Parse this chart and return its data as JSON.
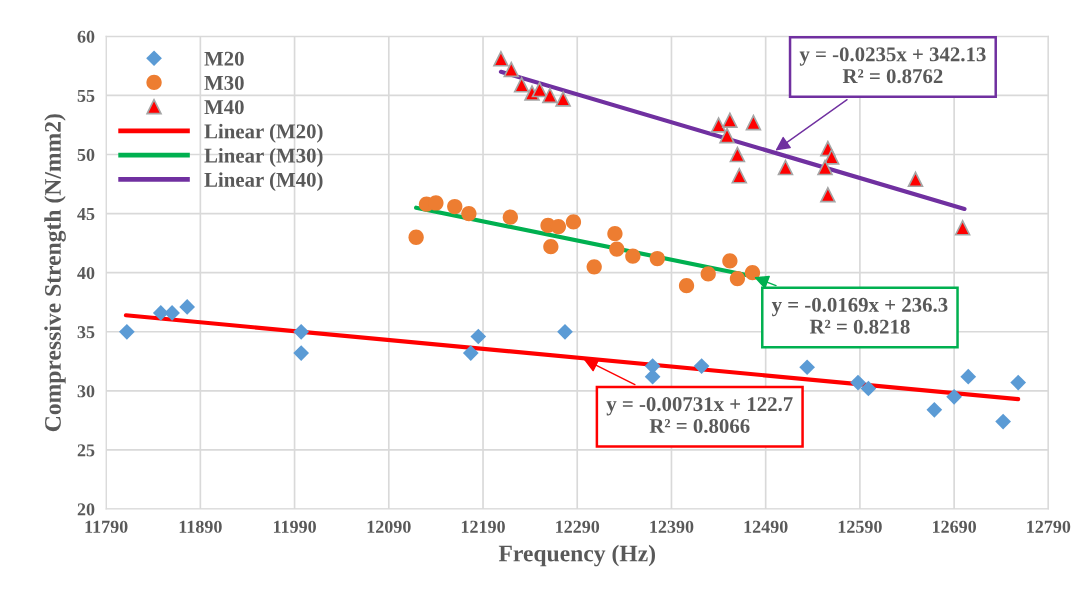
{
  "chart_data": {
    "type": "scatter",
    "xlabel": "Frequency (Hz)",
    "ylabel": "Compressive Strength (N/mm2)",
    "xlim": [
      11790,
      12790
    ],
    "xticks": [
      11790,
      11890,
      11990,
      12090,
      12190,
      12290,
      12390,
      12490,
      12590,
      12690,
      12790
    ],
    "ylim": [
      20,
      60
    ],
    "yticks": [
      20,
      25,
      30,
      35,
      40,
      45,
      50,
      55,
      60
    ],
    "grid": true,
    "legend": "top left",
    "series": [
      {
        "name": "M20",
        "marker": "diamond",
        "color": "#5b9bd5",
        "x": [
          11812,
          11848,
          11860,
          11876,
          11997,
          11997,
          12177,
          12185,
          12277,
          12370,
          12370,
          12422,
          12534,
          12588,
          12599,
          12669,
          12690,
          12705,
          12742,
          12758
        ],
        "values": [
          35.0,
          36.6,
          36.6,
          37.1,
          35.0,
          33.2,
          33.2,
          34.6,
          35.0,
          32.1,
          31.2,
          32.1,
          32.0,
          30.7,
          30.2,
          28.4,
          29.5,
          31.2,
          27.4,
          30.7
        ]
      },
      {
        "name": "M30",
        "marker": "circle",
        "color": "#ed7d31",
        "x": [
          12119,
          12130,
          12140,
          12160,
          12175,
          12219,
          12259,
          12270,
          12262,
          12286,
          12308,
          12330,
          12332,
          12349,
          12375,
          12406,
          12429,
          12452,
          12460,
          12476
        ],
        "values": [
          43.0,
          45.8,
          45.9,
          45.6,
          45.0,
          44.7,
          44.0,
          43.9,
          42.2,
          44.3,
          40.5,
          43.3,
          42.0,
          41.4,
          41.2,
          38.9,
          39.9,
          41.0,
          39.5,
          40.0
        ]
      },
      {
        "name": "M40",
        "marker": "triangle",
        "color": "#ff0000",
        "x": [
          12209,
          12220,
          12231,
          12242,
          12250,
          12261,
          12275,
          12440,
          12452,
          12449,
          12477,
          12460,
          12462,
          12511,
          12556,
          12560,
          12553,
          12556,
          12649,
          12699
        ],
        "values": [
          58.1,
          57.2,
          55.9,
          55.2,
          55.5,
          55.0,
          54.7,
          52.5,
          52.9,
          51.6,
          52.7,
          50.0,
          48.2,
          48.9,
          50.5,
          49.8,
          48.9,
          46.6,
          47.9,
          43.8
        ]
      },
      {
        "name": "Linear (M20)",
        "type": "line",
        "marker": "none",
        "line_style": "solid",
        "color": "#ff0000",
        "x": [
          11811,
          12758
        ],
        "values": [
          36.4,
          29.3
        ]
      },
      {
        "name": "Linear (M30)",
        "type": "line",
        "marker": "none",
        "line_style": "solid",
        "color": "#00b050",
        "x": [
          12119,
          12476
        ],
        "values": [
          45.5,
          39.7
        ]
      },
      {
        "name": "Linear (M40)",
        "type": "line",
        "marker": "none",
        "line_style": "solid",
        "color": "#7030a0",
        "x": [
          12209,
          12701
        ],
        "values": [
          57.0,
          45.4
        ]
      }
    ],
    "annotations": [
      {
        "text": "y = -0.0235x + 342.13\nR² = 0.8762",
        "x": 12498,
        "y": 50.2
      },
      {
        "text": "y = -0.0169x + 236.3\nR² = 0.8218",
        "x": 12475,
        "y": 39.7
      },
      {
        "text": "y = -0.00731x + 122.7\nR² = 0.8066",
        "x": 12294,
        "y": 32.8
      }
    ]
  }
}
